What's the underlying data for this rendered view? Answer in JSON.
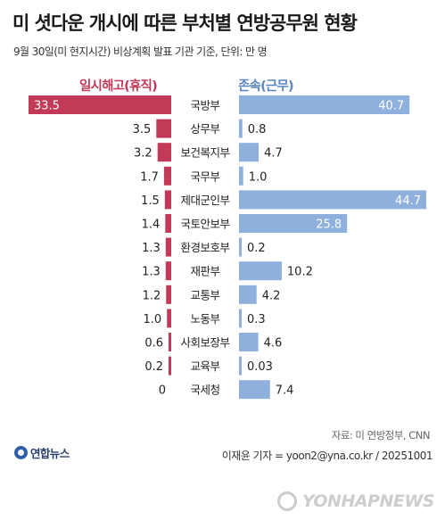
{
  "header": {
    "title": "미 셧다운 개시에 따른 부처별 연방공무원 현황",
    "subtitle": "9월 30일(미 현지시간) 비상계획 발표 기관 기준, 단위: 만 명"
  },
  "chart_data": {
    "type": "bar",
    "orientation": "horizontal-butterfly",
    "categories": [
      "국방부",
      "상무부",
      "보건복지부",
      "국무부",
      "제대군인부",
      "국토안보부",
      "환경보호부",
      "재판부",
      "교통부",
      "노동부",
      "사회보장부",
      "교육부",
      "국세청"
    ],
    "series": [
      {
        "name": "일시해고(휴직)",
        "values": [
          33.5,
          3.5,
          3.2,
          1.7,
          1.5,
          1.4,
          1.3,
          1.3,
          1.2,
          1.0,
          0.6,
          0.2,
          0
        ],
        "labels": [
          "33.5",
          "3.5",
          "3.2",
          "1.7",
          "1.5",
          "1.4",
          "1.3",
          "1.3",
          "1.2",
          "1.0",
          "0.6",
          "0.2",
          "0"
        ],
        "color": "#c23a57"
      },
      {
        "name": "존속(근무)",
        "values": [
          40.7,
          0.8,
          4.7,
          1.0,
          44.7,
          25.8,
          0.2,
          10.2,
          4.2,
          0.3,
          4.6,
          0.03,
          7.4
        ],
        "labels": [
          "40.7",
          "0.8",
          "4.7",
          "1.0",
          "44.7",
          "25.8",
          "0.2",
          "10.2",
          "4.2",
          "0.3",
          "4.6",
          "0.03",
          "7.4"
        ],
        "color": "#8fb0dc"
      }
    ]
  },
  "footer": {
    "source": "자료: 미 연방정부, CNN",
    "reporter": "이재윤 기자 = yoon2@yna.co.kr / 20251001",
    "logo_text": "연합뉴스",
    "watermark": "YONHAPNEWS"
  }
}
